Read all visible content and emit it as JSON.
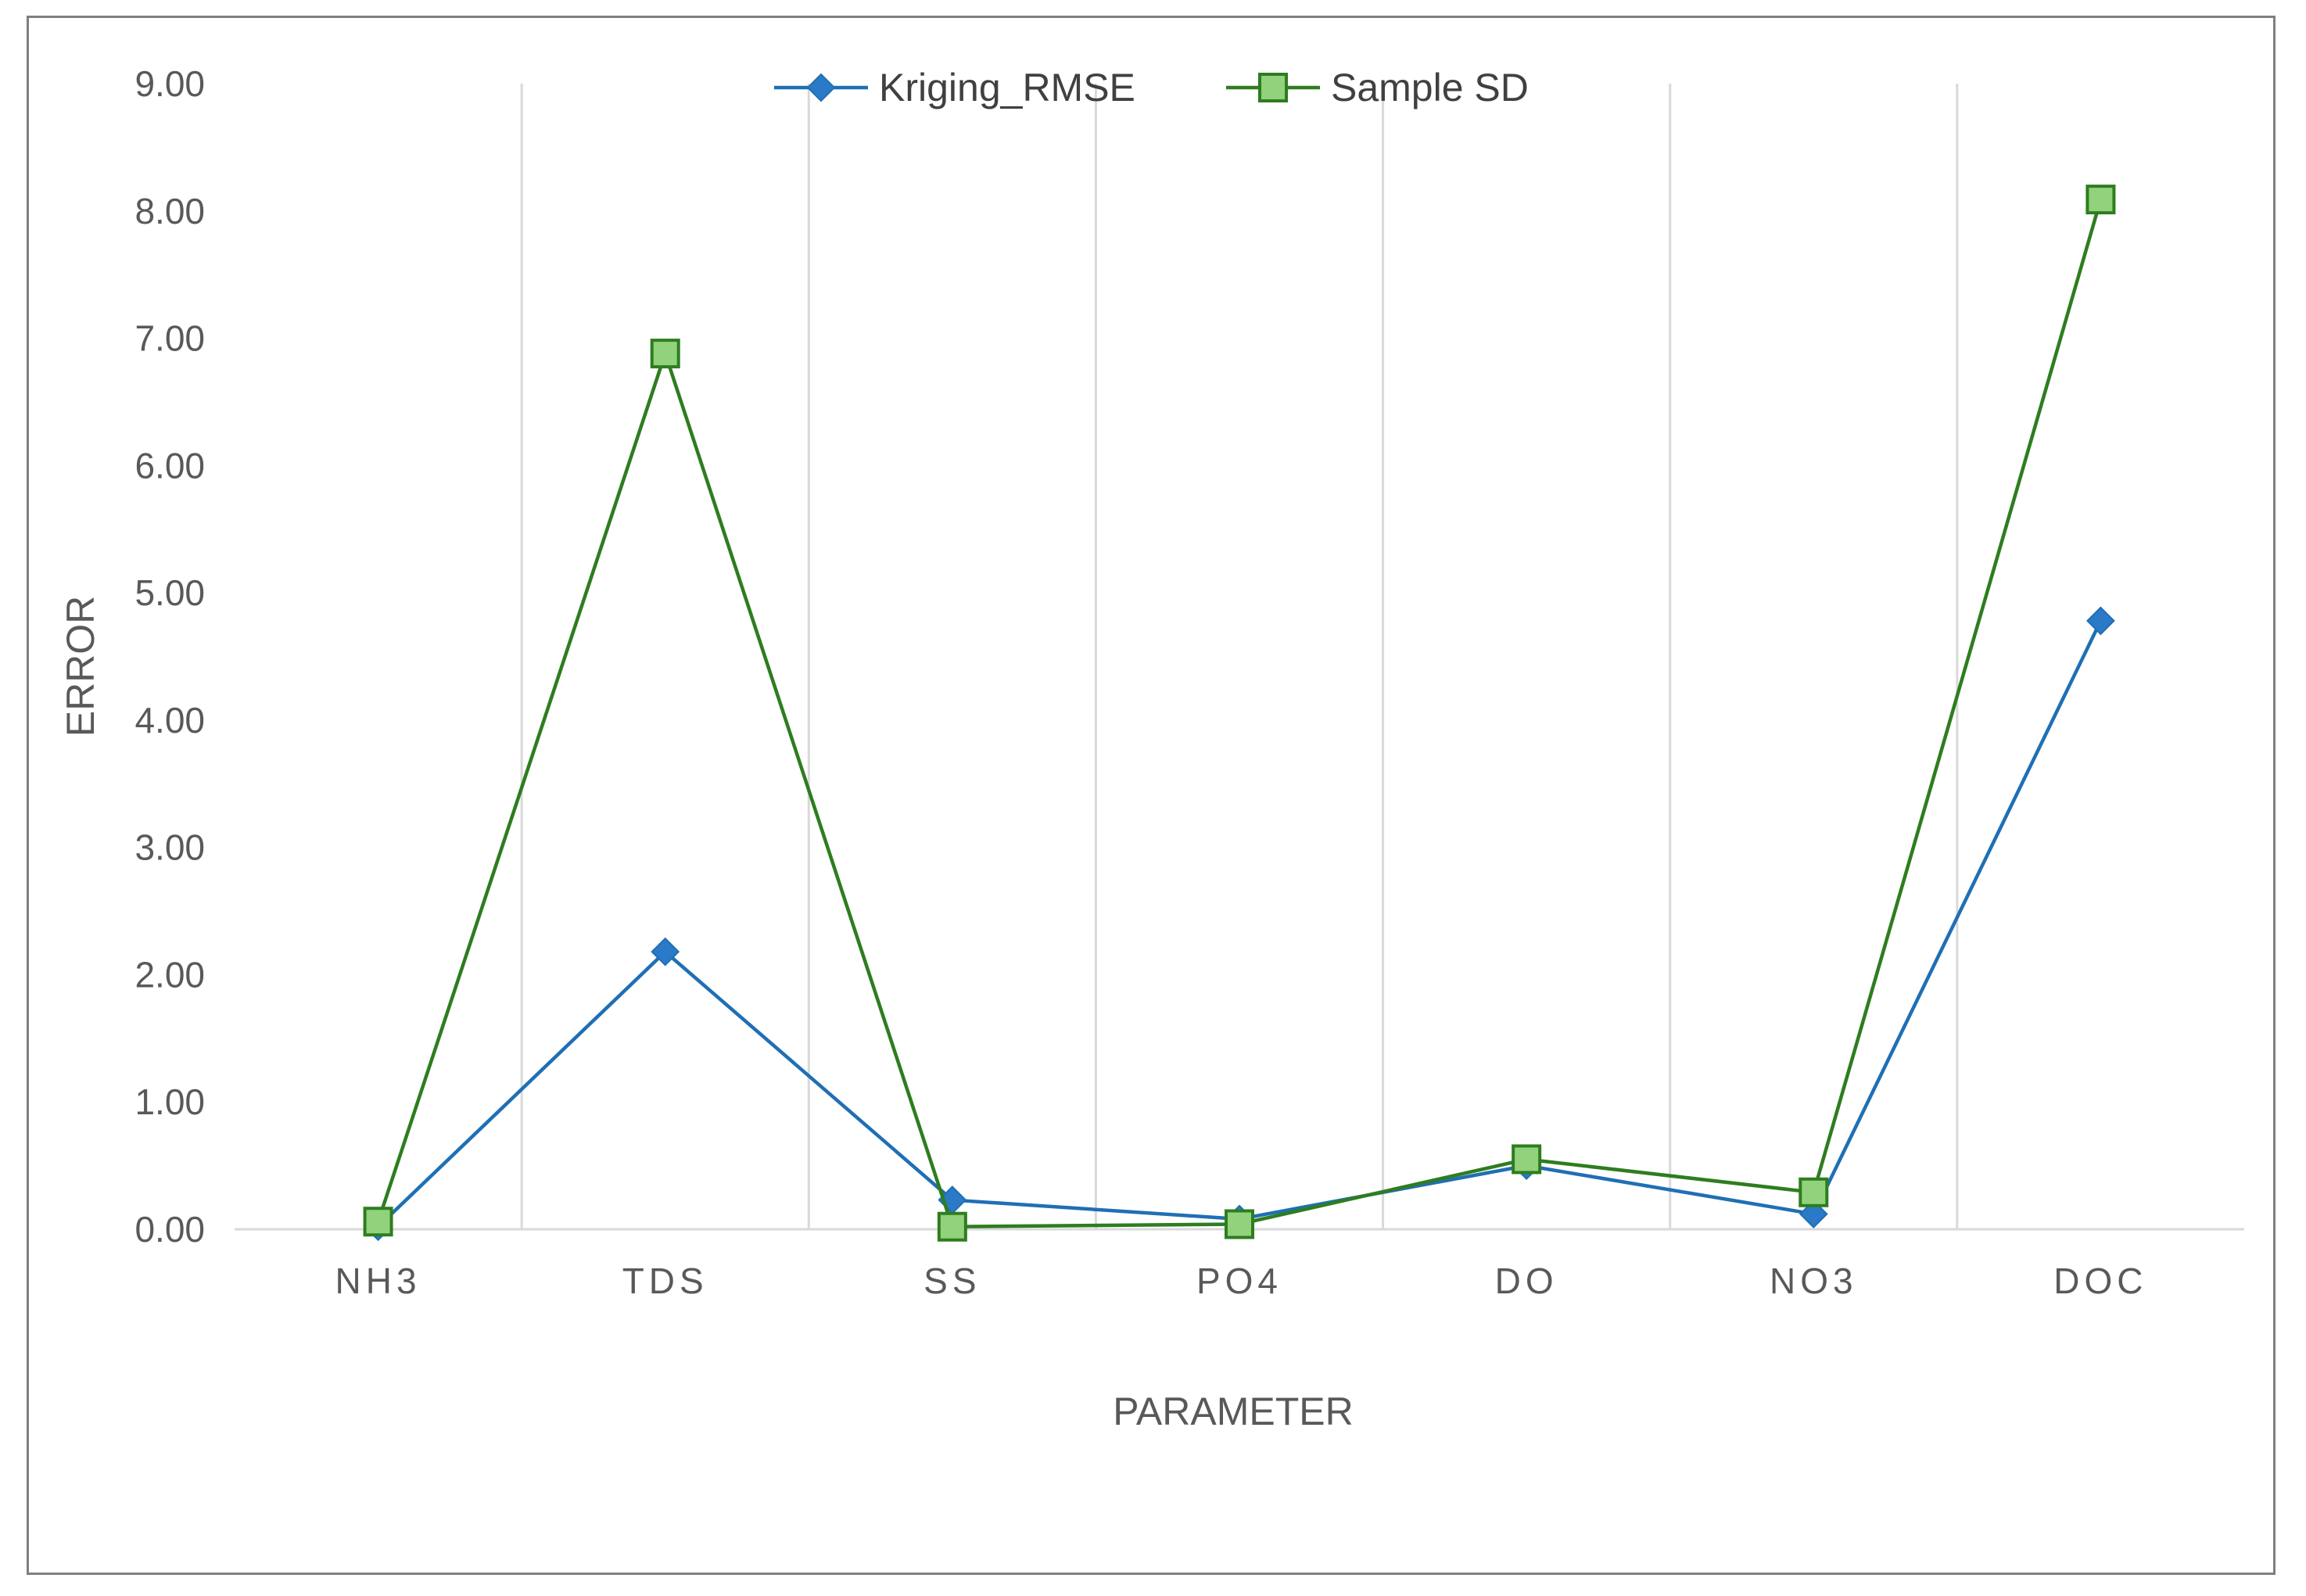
{
  "chart_data": {
    "type": "line",
    "title": "",
    "xlabel": "PARAMETER",
    "ylabel": "ERROR",
    "categories": [
      "NH3",
      "TDS",
      "SS",
      "PO4",
      "DO",
      "NO3",
      "DOC"
    ],
    "ylim": [
      0,
      9
    ],
    "yticks": [
      "0.00",
      "1.00",
      "2.00",
      "3.00",
      "4.00",
      "5.00",
      "6.00",
      "7.00",
      "8.00",
      "9.00"
    ],
    "grid": "vertical",
    "legend_position": "top-center",
    "series": [
      {
        "name": "Kriging_RMSE",
        "marker": "diamond",
        "color": "#1f6fb4",
        "marker_color": "#2a7ac8",
        "values": [
          0.02,
          2.18,
          0.23,
          0.08,
          0.5,
          0.12,
          4.78
        ]
      },
      {
        "name": "Sample SD",
        "marker": "square",
        "color": "#2e7d1f",
        "marker_color": "#92d27c",
        "values": [
          0.06,
          6.88,
          0.02,
          0.04,
          0.55,
          0.29,
          8.09
        ]
      }
    ]
  }
}
